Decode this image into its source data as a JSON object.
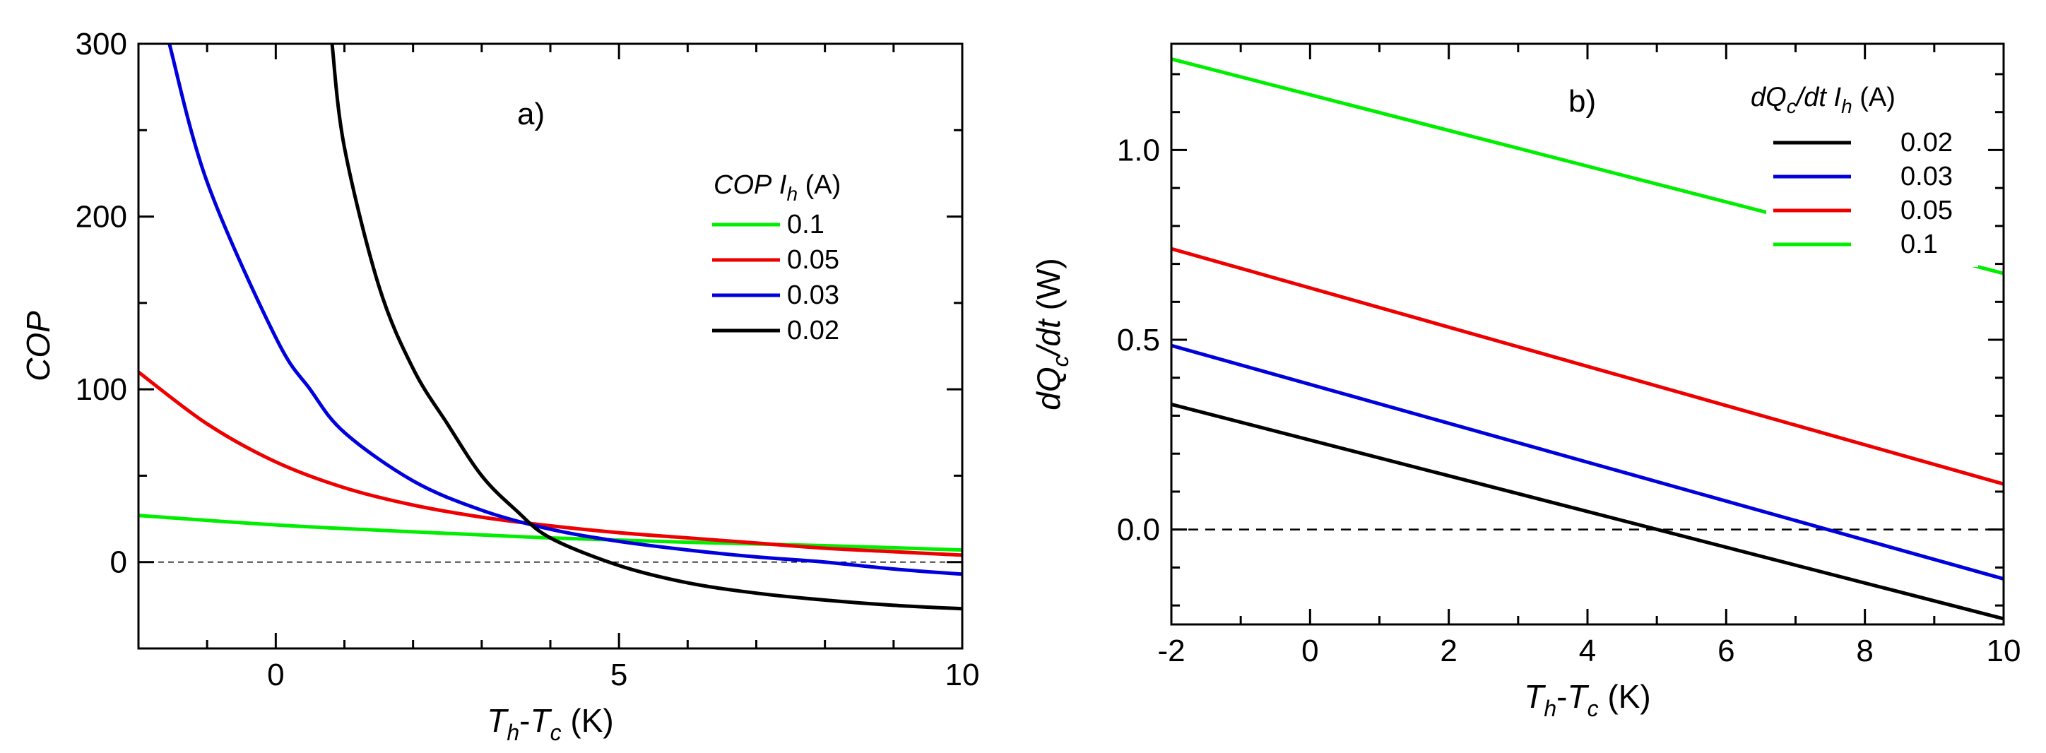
{
  "chart_data": [
    {
      "type": "line",
      "panel_label": "a)",
      "xlabel": {
        "main": "T",
        "sub1": "h",
        "mid": "-T",
        "sub2": "c",
        "unit": " (K)"
      },
      "ylabel": "COP",
      "xlim": [
        -2,
        10
      ],
      "ylim": [
        -50,
        300
      ],
      "xticks": [
        0,
        5,
        10
      ],
      "yticks": [
        0,
        100,
        200,
        300
      ],
      "zero_line": 0,
      "legend": {
        "title_var": "COP",
        "title_i": "I",
        "title_sub": "h",
        "title_unit": " (A)",
        "placement": "right"
      },
      "series": [
        {
          "name": "0.1",
          "color": "#00ee00",
          "x": [
            -2,
            0,
            2,
            4,
            6,
            8,
            10
          ],
          "y": [
            27,
            21.5,
            17.5,
            14,
            11.5,
            9.5,
            7
          ]
        },
        {
          "name": "0.05",
          "color": "#ee0000",
          "x": [
            -2,
            -1,
            0,
            1,
            2,
            3,
            4,
            5,
            6,
            7,
            8,
            9,
            10
          ],
          "y": [
            110,
            80,
            58,
            43,
            33,
            26,
            21,
            17,
            14,
            11,
            8,
            6,
            4
          ]
        },
        {
          "name": "0.03",
          "color": "#0000dd",
          "x": [
            -1.55,
            -1,
            0,
            0.5,
            1,
            2,
            3,
            4,
            5,
            6,
            7,
            8,
            9,
            10
          ],
          "y": [
            300,
            220,
            130,
            100,
            75,
            47,
            30,
            19,
            12,
            7,
            3,
            0,
            -4,
            -7
          ]
        },
        {
          "name": "0.02",
          "color": "#000000",
          "x": [
            0.82,
            1,
            1.5,
            2,
            2.5,
            3,
            3.5,
            4,
            5,
            6,
            7,
            8,
            9,
            10
          ],
          "y": [
            300,
            240,
            160,
            112,
            80,
            50,
            30,
            14,
            -2,
            -12,
            -18,
            -22,
            -25,
            -27
          ]
        }
      ]
    },
    {
      "type": "line",
      "panel_label": "b)",
      "xlabel": {
        "main": "T",
        "sub1": "h",
        "mid": "-T",
        "sub2": "c",
        "unit": " (K)"
      },
      "ylabel": {
        "main": "dQ",
        "sub": "c",
        "tail": "/dt",
        "unit": " (W)"
      },
      "xlim": [
        -2,
        10
      ],
      "ylim": [
        -0.25,
        1.28
      ],
      "xticks": [
        -2,
        0,
        2,
        4,
        6,
        8,
        10
      ],
      "yticks": [
        0.0,
        0.5,
        1.0
      ],
      "ytick_labels": [
        "0.0",
        "0.5",
        "1.0"
      ],
      "zero_line": 0,
      "legend": {
        "title_var": "dQ",
        "title_var_sub": "c",
        "title_var_tail": "/dt",
        "title_i": "I",
        "title_sub": "h",
        "title_unit": " (A)",
        "placement": "top-right"
      },
      "series": [
        {
          "name": "0.02",
          "color": "#000000",
          "x": [
            -2,
            10
          ],
          "y": [
            0.33,
            -0.235
          ]
        },
        {
          "name": "0.03",
          "color": "#0000dd",
          "x": [
            -2,
            10
          ],
          "y": [
            0.485,
            -0.13
          ]
        },
        {
          "name": "0.05",
          "color": "#ee0000",
          "x": [
            -2,
            10
          ],
          "y": [
            0.74,
            0.12
          ]
        },
        {
          "name": "0.1",
          "color": "#00ee00",
          "x": [
            -2,
            10
          ],
          "y": [
            1.24,
            0.675
          ]
        }
      ]
    }
  ]
}
